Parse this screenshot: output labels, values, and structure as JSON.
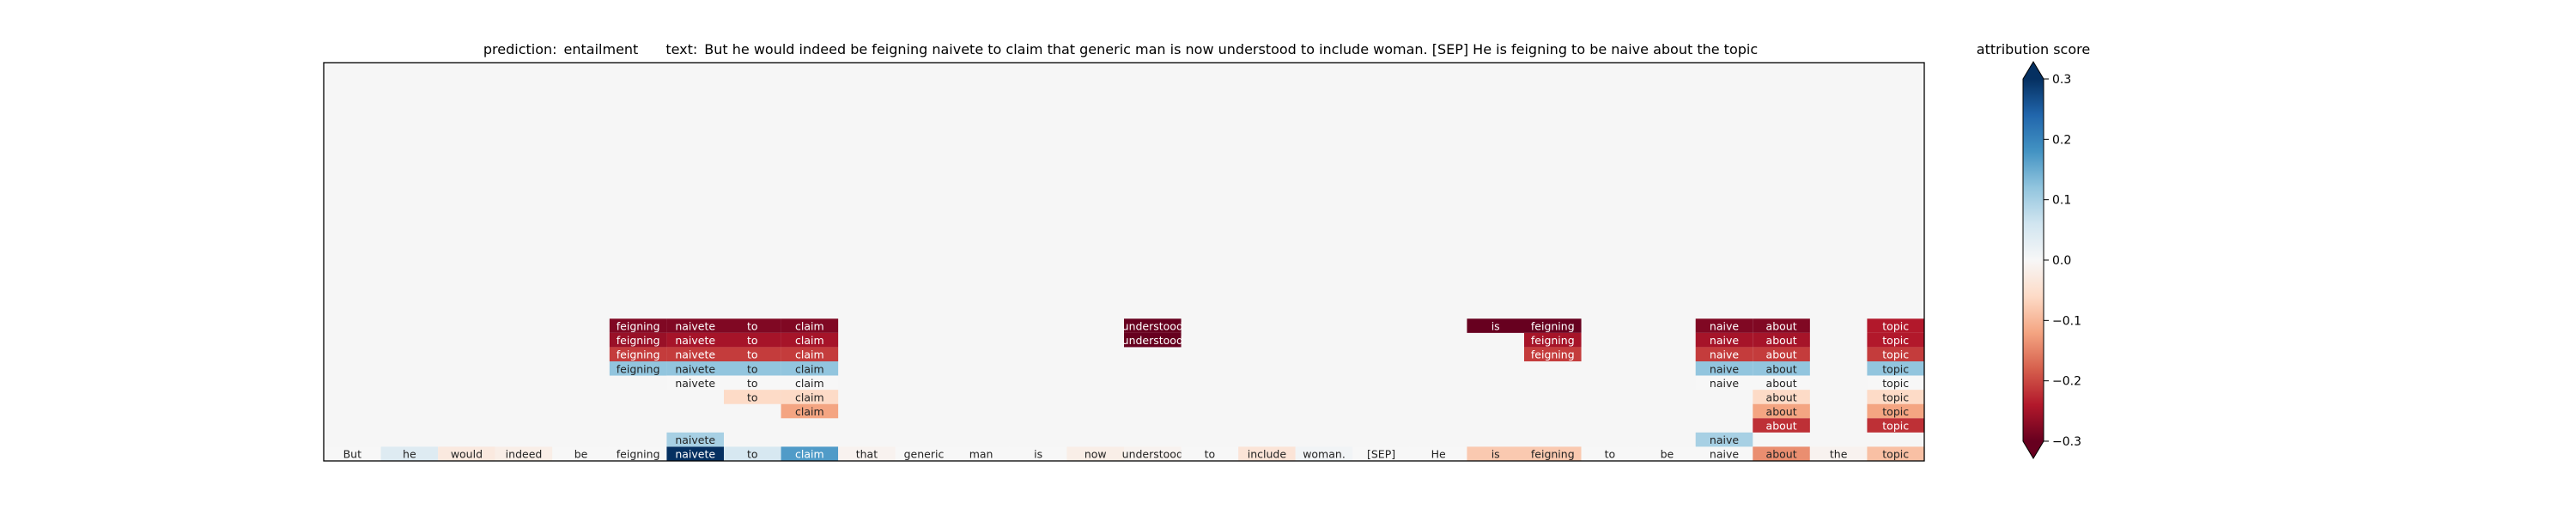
{
  "chart_data": {
    "type": "heatmap",
    "title_prefix": "prediction:",
    "prediction": "entailment",
    "text_label": "text:",
    "text": "But he would indeed be feigning naivete to claim that generic man is now understood to include woman. [SEP] He is feigning to be naive about the topic",
    "colorbar_label": "attribution score",
    "colorbar_range": [
      -0.3,
      0.3
    ],
    "colorbar_ticks": [
      {
        "value": 0.3,
        "label": "0.3"
      },
      {
        "value": 0.2,
        "label": "0.2"
      },
      {
        "value": 0.1,
        "label": "0.1"
      },
      {
        "value": 0.0,
        "label": "0.0"
      },
      {
        "value": -0.1,
        "label": "−0.1"
      },
      {
        "value": -0.2,
        "label": "−0.2"
      },
      {
        "value": -0.3,
        "label": "−0.3"
      }
    ],
    "background_color": "#f6f6f6",
    "n_rows": 28,
    "n_columns": 28,
    "tokens": [
      {
        "text": "But",
        "value": 0.0
      },
      {
        "text": "he",
        "value": 0.04
      },
      {
        "text": "would",
        "value": -0.03
      },
      {
        "text": "indeed",
        "value": -0.02
      },
      {
        "text": "be",
        "value": 0.0
      },
      {
        "text": "feigning",
        "value": 0.0
      },
      {
        "text": "naivete",
        "value": 0.3
      },
      {
        "text": "to",
        "value": 0.05
      },
      {
        "text": "claim",
        "value": 0.17
      },
      {
        "text": "that",
        "value": -0.01
      },
      {
        "text": "generic",
        "value": 0.0
      },
      {
        "text": "man",
        "value": 0.0
      },
      {
        "text": "is",
        "value": 0.0
      },
      {
        "text": "now",
        "value": -0.02
      },
      {
        "text": "understood",
        "value": -0.01
      },
      {
        "text": "to",
        "value": 0.0
      },
      {
        "text": "include",
        "value": -0.04
      },
      {
        "text": "woman.",
        "value": 0.01
      },
      {
        "text": "[SEP]",
        "value": 0.0
      },
      {
        "text": "He",
        "value": 0.0
      },
      {
        "text": "is",
        "value": -0.08
      },
      {
        "text": "feigning",
        "value": -0.08
      },
      {
        "text": "to",
        "value": 0.0
      },
      {
        "text": "be",
        "value": 0.0
      },
      {
        "text": "naive",
        "value": 0.0
      },
      {
        "text": "about",
        "value": -0.14
      },
      {
        "text": "the",
        "value": -0.01
      },
      {
        "text": "topic",
        "value": -0.09
      }
    ],
    "cells": [
      {
        "row": 18,
        "col": 5,
        "text": "feigning",
        "value": -0.28
      },
      {
        "row": 18,
        "col": 6,
        "text": "naivete",
        "value": -0.28
      },
      {
        "row": 18,
        "col": 7,
        "text": "to",
        "value": -0.28
      },
      {
        "row": 18,
        "col": 8,
        "text": "claim",
        "value": -0.28
      },
      {
        "row": 18,
        "col": 14,
        "text": "understood",
        "value": -0.3
      },
      {
        "row": 18,
        "col": 20,
        "text": "is",
        "value": -0.3
      },
      {
        "row": 18,
        "col": 21,
        "text": "feigning",
        "value": -0.3
      },
      {
        "row": 18,
        "col": 24,
        "text": "naive",
        "value": -0.28
      },
      {
        "row": 18,
        "col": 25,
        "text": "about",
        "value": -0.28
      },
      {
        "row": 18,
        "col": 27,
        "text": "topic",
        "value": -0.24
      },
      {
        "row": 19,
        "col": 5,
        "text": "feigning",
        "value": -0.26
      },
      {
        "row": 19,
        "col": 6,
        "text": "naivete",
        "value": -0.25
      },
      {
        "row": 19,
        "col": 7,
        "text": "to",
        "value": -0.25
      },
      {
        "row": 19,
        "col": 8,
        "text": "claim",
        "value": -0.25
      },
      {
        "row": 19,
        "col": 14,
        "text": "understood",
        "value": -0.3
      },
      {
        "row": 19,
        "col": 21,
        "text": "feigning",
        "value": -0.25
      },
      {
        "row": 19,
        "col": 24,
        "text": "naive",
        "value": -0.25
      },
      {
        "row": 19,
        "col": 25,
        "text": "about",
        "value": -0.25
      },
      {
        "row": 19,
        "col": 27,
        "text": "topic",
        "value": -0.24
      },
      {
        "row": 20,
        "col": 5,
        "text": "feigning",
        "value": -0.21
      },
      {
        "row": 20,
        "col": 6,
        "text": "naivete",
        "value": -0.21
      },
      {
        "row": 20,
        "col": 7,
        "text": "to",
        "value": -0.21
      },
      {
        "row": 20,
        "col": 8,
        "text": "claim",
        "value": -0.21
      },
      {
        "row": 20,
        "col": 21,
        "text": "feigning",
        "value": -0.21
      },
      {
        "row": 20,
        "col": 24,
        "text": "naive",
        "value": -0.21
      },
      {
        "row": 20,
        "col": 25,
        "text": "about",
        "value": -0.21
      },
      {
        "row": 20,
        "col": 27,
        "text": "topic",
        "value": -0.21
      },
      {
        "row": 21,
        "col": 5,
        "text": "feigning",
        "value": 0.12
      },
      {
        "row": 21,
        "col": 6,
        "text": "naivete",
        "value": 0.12
      },
      {
        "row": 21,
        "col": 7,
        "text": "to",
        "value": 0.12
      },
      {
        "row": 21,
        "col": 8,
        "text": "claim",
        "value": 0.12
      },
      {
        "row": 21,
        "col": 24,
        "text": "naive",
        "value": 0.12
      },
      {
        "row": 21,
        "col": 25,
        "text": "about",
        "value": 0.12
      },
      {
        "row": 21,
        "col": 27,
        "text": "topic",
        "value": 0.12
      },
      {
        "row": 22,
        "col": 6,
        "text": "naivete",
        "value": 0.0
      },
      {
        "row": 22,
        "col": 7,
        "text": "to",
        "value": 0.0
      },
      {
        "row": 22,
        "col": 8,
        "text": "claim",
        "value": 0.0
      },
      {
        "row": 22,
        "col": 24,
        "text": "naive",
        "value": 0.0
      },
      {
        "row": 22,
        "col": 25,
        "text": "about",
        "value": 0.0
      },
      {
        "row": 22,
        "col": 27,
        "text": "topic",
        "value": 0.0
      },
      {
        "row": 23,
        "col": 7,
        "text": "to",
        "value": -0.06
      },
      {
        "row": 23,
        "col": 8,
        "text": "claim",
        "value": -0.06
      },
      {
        "row": 23,
        "col": 25,
        "text": "about",
        "value": -0.06
      },
      {
        "row": 23,
        "col": 27,
        "text": "topic",
        "value": -0.06
      },
      {
        "row": 24,
        "col": 8,
        "text": "claim",
        "value": -0.12
      },
      {
        "row": 24,
        "col": 25,
        "text": "about",
        "value": -0.12
      },
      {
        "row": 24,
        "col": 27,
        "text": "topic",
        "value": -0.12
      },
      {
        "row": 25,
        "col": 25,
        "text": "about",
        "value": -0.22
      },
      {
        "row": 25,
        "col": 27,
        "text": "topic",
        "value": -0.22
      },
      {
        "row": 26,
        "col": 6,
        "text": "naivete",
        "value": 0.1
      },
      {
        "row": 26,
        "col": 24,
        "text": "naive",
        "value": 0.1
      }
    ]
  }
}
